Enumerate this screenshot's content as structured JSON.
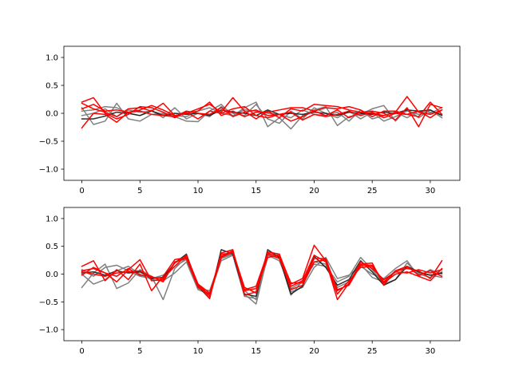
{
  "chart_data": [
    {
      "type": "line",
      "title": "",
      "xlabel": "",
      "ylabel": "",
      "xlim": [
        -1.55,
        32.55
      ],
      "ylim": [
        -1.2,
        1.2
      ],
      "xticks": [
        "0",
        "5",
        "10",
        "15",
        "20",
        "25",
        "30"
      ],
      "xtick_values": [
        0,
        5,
        10,
        15,
        20,
        25,
        30
      ],
      "yticks": [
        "−1.0",
        "−0.5",
        "0.0",
        "0.5",
        "1.0"
      ],
      "ytick_values": [
        -1.0,
        -0.5,
        0.0,
        0.5,
        1.0
      ],
      "grid": false,
      "legend": "none",
      "x": [
        0,
        1,
        2,
        3,
        4,
        5,
        6,
        7,
        8,
        9,
        10,
        11,
        12,
        13,
        14,
        15,
        16,
        17,
        18,
        19,
        20,
        21,
        22,
        23,
        24,
        25,
        26,
        27,
        28,
        29,
        30,
        31
      ],
      "series": [
        {
          "color": "#808080",
          "values": [
            0.1,
            -0.2,
            -0.14,
            0.18,
            -0.1,
            -0.14,
            -0.02,
            0.0,
            -0.06,
            -0.14,
            -0.15,
            0.04,
            0.16,
            -0.05,
            0.1,
            0.2,
            -0.24,
            -0.08,
            -0.28,
            -0.04,
            0.06,
            0.12,
            -0.22,
            -0.06,
            -0.02,
            0.08,
            0.14,
            -0.14,
            0.08,
            -0.08,
            0.06,
            -0.08
          ]
        },
        {
          "color": "#808080",
          "values": [
            0.04,
            0.06,
            0.12,
            0.1,
            0.0,
            -0.04,
            0.06,
            -0.08,
            0.1,
            -0.1,
            0.0,
            -0.06,
            0.12,
            0.0,
            -0.04,
            0.16,
            -0.1,
            -0.18,
            0.04,
            -0.1,
            0.1,
            0.0,
            -0.08,
            0.04,
            -0.1,
            0.02,
            -0.14,
            -0.06,
            0.04,
            -0.02,
            0.0,
            0.1
          ]
        },
        {
          "color": "#808080",
          "values": [
            -0.04,
            0.0,
            0.08,
            -0.06,
            0.06,
            0.02,
            0.04,
            -0.02,
            -0.04,
            -0.06,
            0.04,
            0.1,
            0.0,
            -0.04,
            0.06,
            0.04,
            0.0,
            -0.02,
            -0.08,
            0.06,
            -0.02,
            -0.04,
            0.02,
            -0.14,
            0.06,
            -0.1,
            -0.04,
            0.02,
            -0.08,
            0.04,
            0.02,
            -0.02
          ]
        },
        {
          "color": "#1a1a1a",
          "values": [
            -0.1,
            -0.1,
            -0.05,
            0.02,
            0.0,
            -0.04,
            0.04,
            -0.04,
            0.0,
            -0.02,
            0.0,
            -0.04,
            0.06,
            0.02,
            0.0,
            -0.04,
            0.06,
            -0.02,
            0.0,
            -0.02,
            0.02,
            0.0,
            -0.04,
            0.02,
            0.0,
            -0.02,
            0.02,
            0.0,
            0.06,
            0.04,
            0.06,
            -0.04
          ]
        },
        {
          "color": "#ff0000",
          "values": [
            0.18,
            0.08,
            0.02,
            -0.06,
            0.08,
            0.1,
            0.04,
            0.18,
            -0.04,
            0.0,
            0.08,
            0.16,
            0.02,
            0.28,
            0.04,
            -0.1,
            0.04,
            -0.08,
            0.08,
            0.04,
            0.16,
            0.14,
            0.12,
            0.06,
            0.02,
            0.0,
            -0.04,
            0.02,
            0.3,
            0.02,
            -0.02,
            0.06
          ]
        },
        {
          "color": "#ff0000",
          "values": [
            -0.26,
            0.0,
            -0.02,
            -0.16,
            0.02,
            0.06,
            0.14,
            0.06,
            -0.04,
            0.0,
            0.04,
            0.2,
            -0.04,
            0.04,
            -0.06,
            0.02,
            0.02,
            0.06,
            0.1,
            0.1,
            0.04,
            0.1,
            0.08,
            0.12,
            0.06,
            -0.06,
            0.04,
            0.04,
            -0.02,
            -0.06,
            0.2,
            -0.02
          ]
        },
        {
          "color": "#ff0000",
          "values": [
            0.2,
            0.28,
            0.0,
            -0.1,
            -0.02,
            0.12,
            0.1,
            0.02,
            -0.08,
            0.02,
            -0.1,
            0.04,
            0.0,
            0.08,
            0.12,
            -0.04,
            -0.08,
            -0.02,
            -0.14,
            -0.06,
            0.04,
            -0.04,
            0.06,
            -0.08,
            0.02,
            0.04,
            0.0,
            -0.12,
            0.1,
            -0.24,
            0.16,
            0.1
          ]
        },
        {
          "color": "#ff0000",
          "values": [
            0.08,
            0.16,
            0.04,
            0.06,
            0.02,
            0.04,
            -0.02,
            -0.04,
            -0.06,
            0.04,
            0.0,
            -0.02,
            0.1,
            -0.06,
            0.02,
            0.06,
            -0.04,
            -0.02,
            0.02,
            -0.12,
            -0.02,
            -0.06,
            -0.02,
            0.04,
            -0.04,
            0.02,
            -0.08,
            0.0,
            -0.02,
            0.04,
            -0.08,
            0.06
          ]
        }
      ]
    },
    {
      "type": "line",
      "title": "",
      "xlabel": "",
      "ylabel": "",
      "xlim": [
        -1.55,
        32.55
      ],
      "ylim": [
        -1.2,
        1.2
      ],
      "xticks": [
        "0",
        "5",
        "10",
        "15",
        "20",
        "25",
        "30"
      ],
      "xtick_values": [
        0,
        5,
        10,
        15,
        20,
        25,
        30
      ],
      "yticks": [
        "−1.0",
        "−0.5",
        "0.0",
        "0.5",
        "1.0"
      ],
      "ytick_values": [
        -1.0,
        -0.5,
        0.0,
        0.5,
        1.0
      ],
      "grid": false,
      "legend": "none",
      "x": [
        0,
        1,
        2,
        3,
        4,
        5,
        6,
        7,
        8,
        9,
        10,
        11,
        12,
        13,
        14,
        15,
        16,
        17,
        18,
        19,
        20,
        21,
        22,
        23,
        24,
        25,
        26,
        27,
        28,
        29,
        30,
        31
      ],
      "series": [
        {
          "color": "#808080",
          "values": [
            -0.24,
            0.02,
            0.18,
            -0.26,
            -0.16,
            0.08,
            -0.04,
            -0.46,
            0.1,
            0.3,
            -0.18,
            -0.4,
            0.3,
            0.38,
            -0.36,
            -0.54,
            0.34,
            0.3,
            -0.38,
            -0.12,
            0.18,
            0.14,
            -0.14,
            -0.04,
            0.3,
            0.08,
            -0.18,
            -0.1,
            0.2,
            0.0,
            -0.06,
            0.04
          ]
        },
        {
          "color": "#808080",
          "values": [
            0.08,
            -0.04,
            0.12,
            0.16,
            0.06,
            -0.04,
            -0.08,
            -0.02,
            0.14,
            0.26,
            -0.26,
            -0.3,
            0.28,
            0.36,
            -0.3,
            -0.46,
            0.3,
            0.36,
            -0.32,
            -0.24,
            0.12,
            0.3,
            -0.08,
            -0.02,
            0.14,
            0.0,
            -0.08,
            0.1,
            0.24,
            -0.04,
            0.08,
            0.0
          ]
        },
        {
          "color": "#808080",
          "values": [
            0.0,
            -0.18,
            -0.1,
            0.06,
            0.14,
            0.0,
            -0.1,
            -0.12,
            0.02,
            0.22,
            -0.28,
            -0.36,
            0.24,
            0.34,
            -0.4,
            -0.44,
            0.34,
            0.24,
            -0.26,
            -0.14,
            0.22,
            0.18,
            -0.24,
            -0.14,
            0.18,
            -0.06,
            -0.14,
            0.04,
            0.12,
            0.02,
            -0.02,
            -0.06
          ]
        },
        {
          "color": "#1a1a1a",
          "values": [
            0.02,
            0.04,
            -0.02,
            0.06,
            0.02,
            0.04,
            -0.08,
            -0.06,
            0.2,
            0.36,
            -0.22,
            -0.44,
            0.44,
            0.36,
            -0.36,
            -0.4,
            0.44,
            0.3,
            -0.36,
            -0.22,
            0.32,
            0.12,
            -0.2,
            -0.1,
            0.24,
            0.04,
            -0.2,
            -0.1,
            0.14,
            0.04,
            -0.02,
            0.02
          ]
        },
        {
          "color": "#ff0000",
          "values": [
            0.14,
            0.24,
            -0.12,
            0.08,
            -0.1,
            0.18,
            -0.3,
            -0.04,
            0.26,
            0.3,
            -0.2,
            -0.44,
            0.38,
            0.44,
            -0.38,
            -0.32,
            0.4,
            0.36,
            -0.18,
            -0.08,
            0.52,
            0.24,
            -0.46,
            -0.16,
            0.18,
            0.2,
            -0.2,
            0.06,
            0.1,
            0.06,
            -0.08,
            0.24
          ]
        },
        {
          "color": "#ff0000",
          "values": [
            0.06,
            0.1,
            0.02,
            -0.14,
            0.08,
            0.26,
            -0.12,
            -0.1,
            0.2,
            0.32,
            -0.18,
            -0.4,
            0.3,
            0.4,
            -0.24,
            -0.34,
            0.36,
            0.28,
            -0.22,
            -0.12,
            0.34,
            0.22,
            -0.36,
            -0.12,
            0.12,
            0.14,
            -0.16,
            0.0,
            0.04,
            -0.04,
            -0.12,
            0.1
          ]
        },
        {
          "color": "#ff0000",
          "values": [
            -0.02,
            0.12,
            0.02,
            -0.04,
            0.1,
            -0.02,
            -0.04,
            -0.14,
            0.22,
            0.28,
            -0.24,
            -0.36,
            0.36,
            0.38,
            -0.3,
            -0.26,
            0.3,
            0.34,
            -0.16,
            -0.16,
            0.28,
            0.28,
            -0.3,
            -0.18,
            0.22,
            0.1,
            -0.1,
            0.04,
            0.02,
            0.08,
            0.02,
            0.08
          ]
        },
        {
          "color": "#ff0000",
          "values": [
            0.04,
            0.0,
            -0.04,
            0.02,
            0.04,
            0.06,
            -0.06,
            -0.08,
            0.14,
            0.34,
            -0.18,
            -0.34,
            0.32,
            0.42,
            -0.28,
            -0.22,
            0.38,
            0.32,
            -0.28,
            -0.2,
            0.22,
            0.26,
            -0.28,
            -0.2,
            0.16,
            0.16,
            -0.14,
            0.06,
            0.14,
            -0.02,
            0.06,
            -0.04
          ]
        }
      ]
    }
  ]
}
